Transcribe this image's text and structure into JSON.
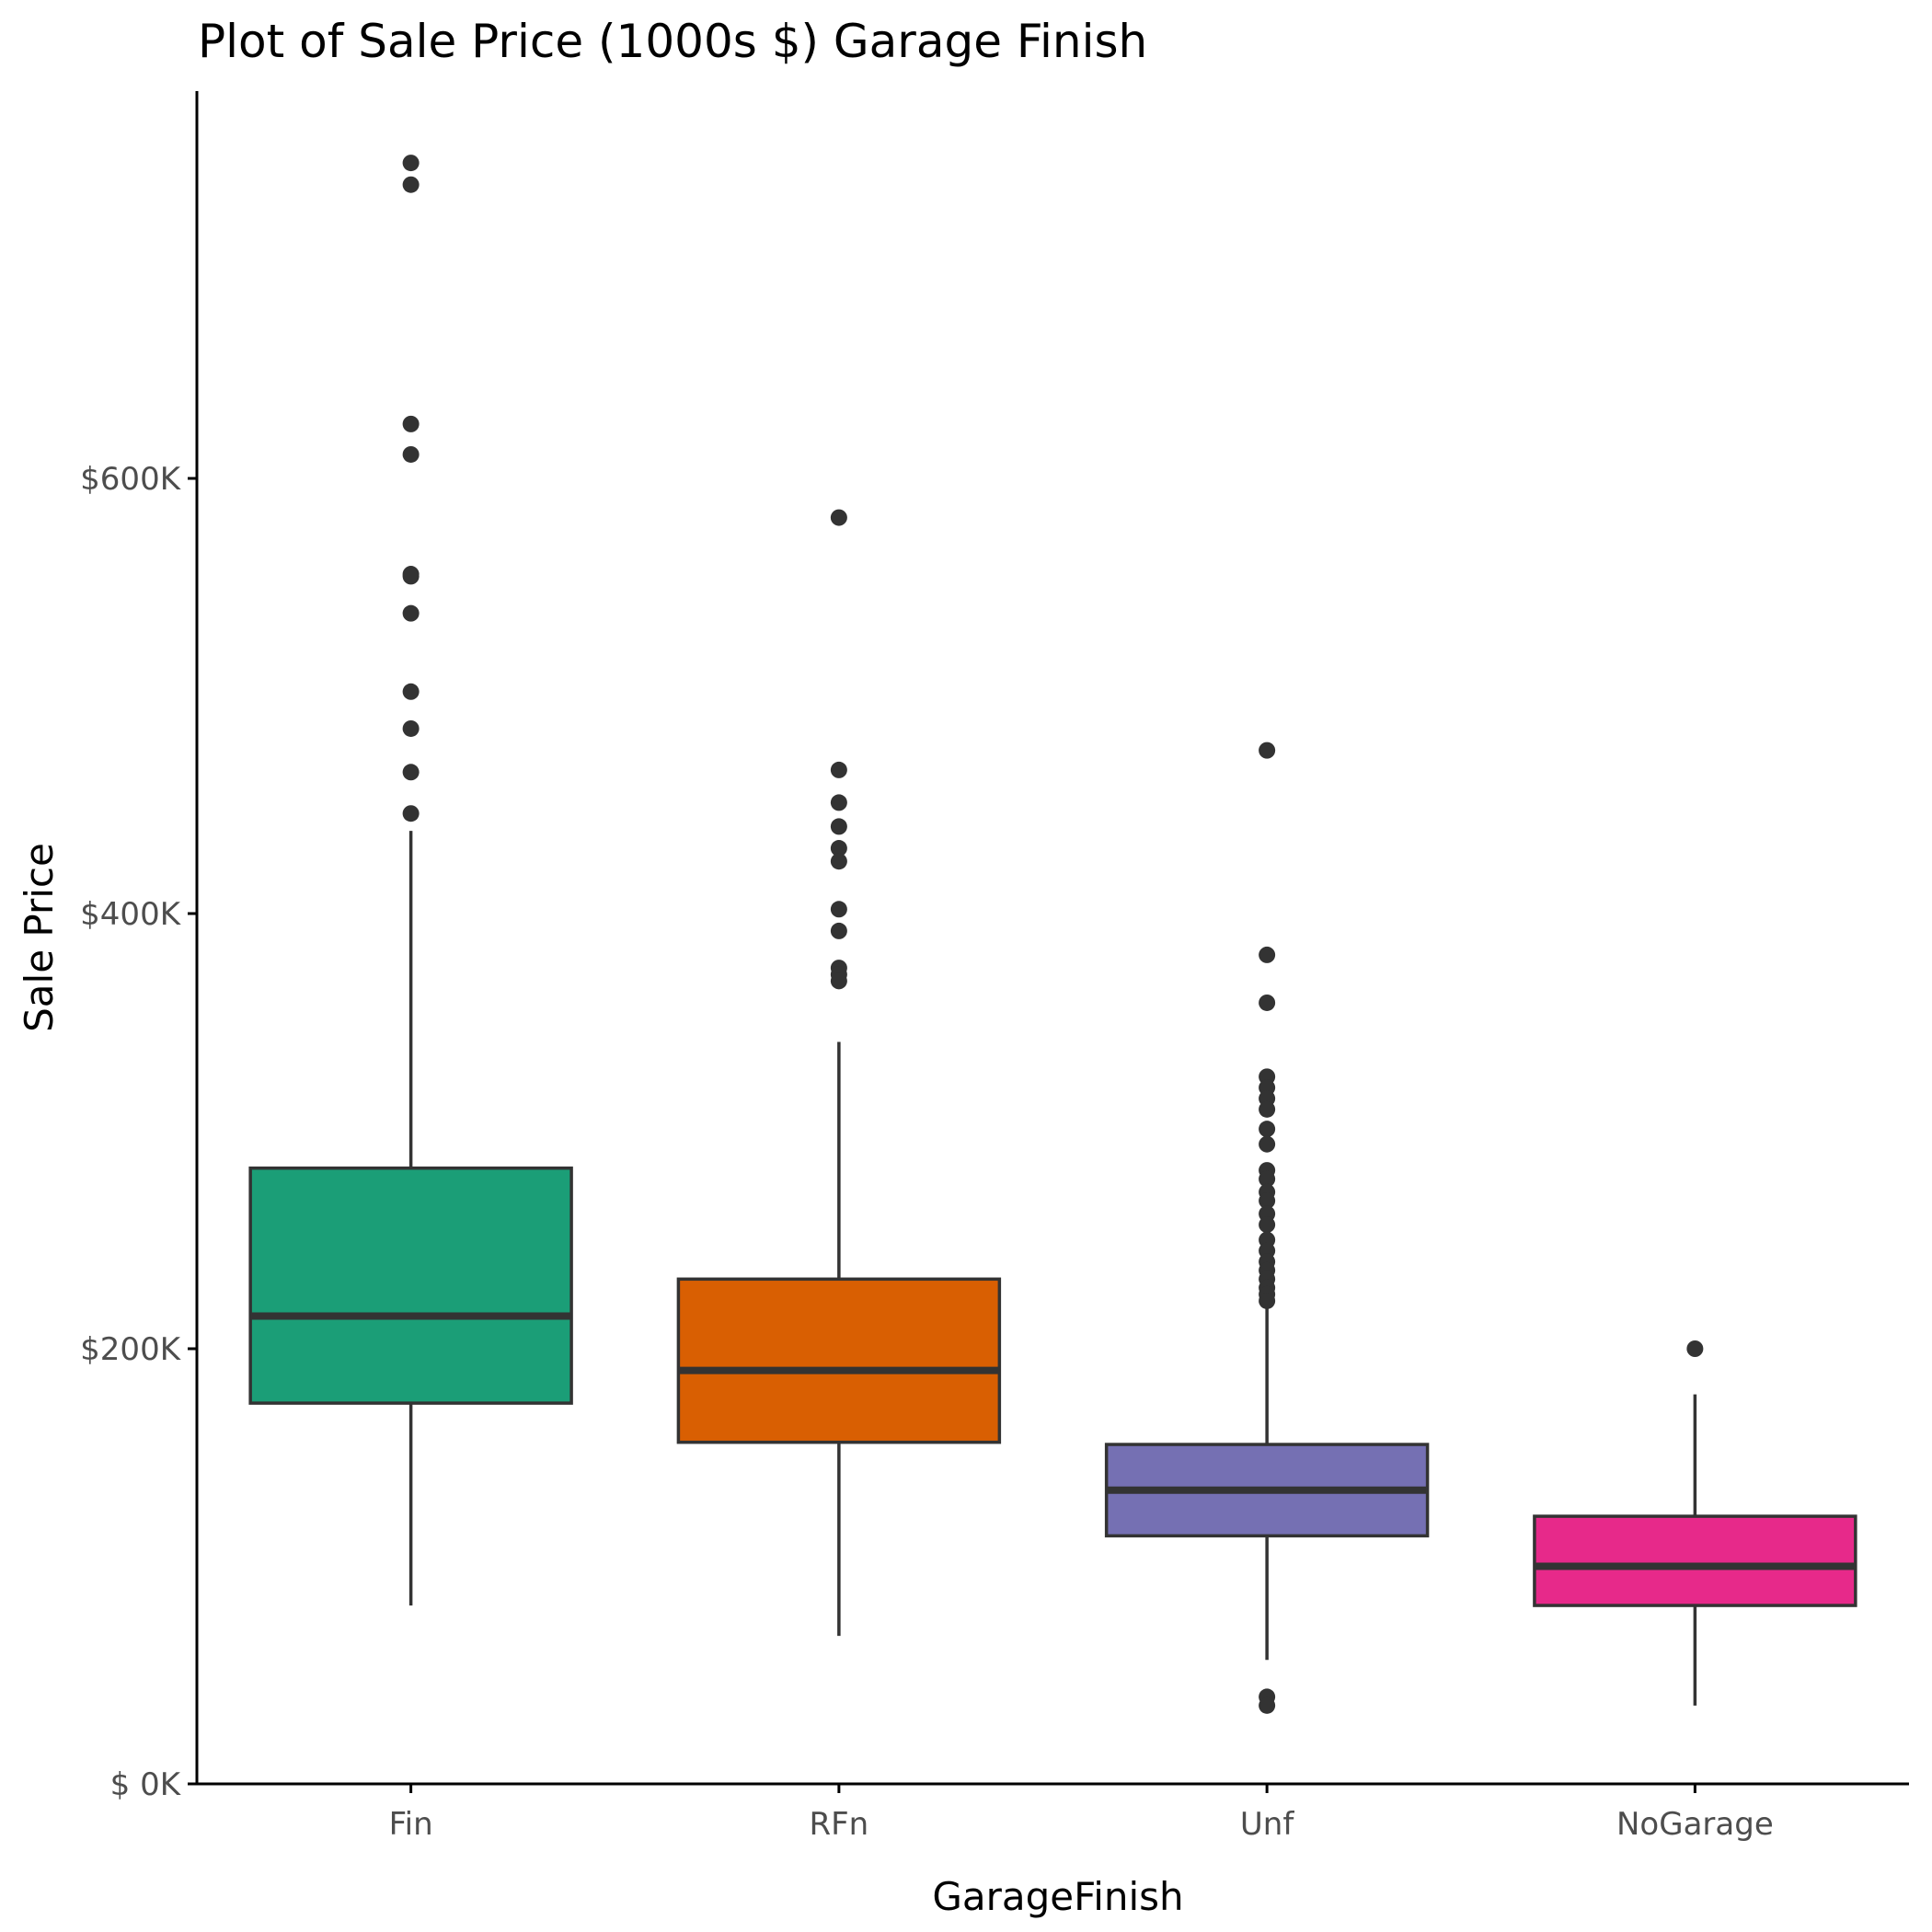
{
  "chart_data": {
    "type": "box",
    "title": "Plot of Sale Price (1000s $) Garage Finish",
    "xlabel": "GarageFinish",
    "ylabel": "Sale Price",
    "ylim": [
      0,
      800000
    ],
    "y_ticks": [
      {
        "value": 0,
        "label": "$  0K"
      },
      {
        "value": 200000,
        "label": "$200K"
      },
      {
        "value": 400000,
        "label": "$400K"
      },
      {
        "value": 600000,
        "label": "$600K"
      }
    ],
    "grid": false,
    "legend": "none",
    "categories": [
      "Fin",
      "RFn",
      "Unf",
      "NoGarage"
    ],
    "boxes": [
      {
        "category": "Fin",
        "color": "#1b9e77",
        "whisker_low": 82000,
        "q1": 175000,
        "median": 215000,
        "q3": 283000,
        "whisker_high": 438000,
        "outliers": [
          745000,
          735000,
          625000,
          611000,
          556000,
          555000,
          538000,
          502000,
          485000,
          465000,
          446000
        ]
      },
      {
        "category": "RFn",
        "color": "#d95f02",
        "whisker_low": 68000,
        "q1": 157000,
        "median": 190000,
        "q3": 232000,
        "whisker_high": 341000,
        "outliers": [
          582000,
          466000,
          451000,
          440000,
          430000,
          424000,
          402000,
          392000,
          375000,
          372000,
          369000
        ]
      },
      {
        "category": "Unf",
        "color": "#7570b3",
        "whisker_low": 57000,
        "q1": 114000,
        "median": 135000,
        "q3": 156000,
        "whisker_high": 220000,
        "outliers": [
          475000,
          381000,
          359000,
          325000,
          320000,
          315000,
          310000,
          301000,
          294000,
          282000,
          278000,
          272000,
          268000,
          262000,
          257000,
          250000,
          245000,
          240000,
          236000,
          232000,
          228000,
          225000,
          222000,
          40000,
          36000
        ]
      },
      {
        "category": "NoGarage",
        "color": "#e7298a",
        "whisker_low": 36000,
        "q1": 82000,
        "median": 100000,
        "q3": 123000,
        "whisker_high": 179000,
        "outliers": [
          200000
        ]
      }
    ]
  }
}
